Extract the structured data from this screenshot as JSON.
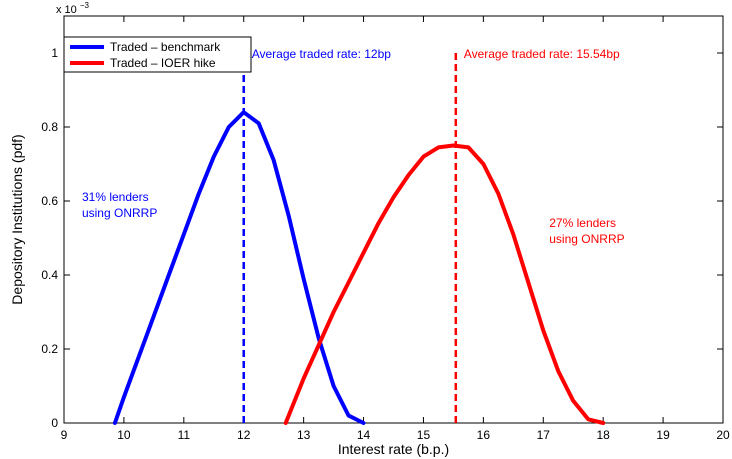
{
  "chart_data": {
    "type": "line",
    "xlabel": "Interest rate (b.p.)",
    "ylabel": "Depository Institutions (pdf)",
    "y_exponent_label": "x 10",
    "y_exponent_power": "−3",
    "xlim": [
      9,
      20
    ],
    "ylim": [
      0,
      1.1
    ],
    "xticks": [
      9,
      10,
      11,
      12,
      13,
      14,
      15,
      16,
      17,
      18,
      19,
      20
    ],
    "yticks": [
      0,
      0.2,
      0.4,
      0.6,
      0.8,
      1
    ],
    "ytick_labels": [
      "0",
      "0.2",
      "0.4",
      "0.6",
      "0.8",
      "1"
    ],
    "grid": false,
    "legend_position": "top-left",
    "series": [
      {
        "name": "Traded – benchmark",
        "color": "#0000ff",
        "x": [
          9.85,
          10.0,
          10.25,
          10.5,
          10.75,
          11.0,
          11.25,
          11.5,
          11.75,
          12.0,
          12.25,
          12.5,
          12.75,
          13.0,
          13.25,
          13.5,
          13.75,
          14.0
        ],
        "y": [
          0.0,
          0.07,
          0.18,
          0.29,
          0.4,
          0.51,
          0.62,
          0.72,
          0.8,
          0.84,
          0.81,
          0.71,
          0.56,
          0.39,
          0.23,
          0.1,
          0.02,
          0.0
        ]
      },
      {
        "name": "Traded – IOER hike",
        "color": "#ff0000",
        "x": [
          12.7,
          13.0,
          13.25,
          13.5,
          13.75,
          14.0,
          14.25,
          14.5,
          14.75,
          15.0,
          15.25,
          15.5,
          15.75,
          16.0,
          16.25,
          16.5,
          16.75,
          17.0,
          17.25,
          17.5,
          17.75,
          18.0
        ],
        "y": [
          0.0,
          0.12,
          0.21,
          0.3,
          0.38,
          0.46,
          0.54,
          0.61,
          0.67,
          0.72,
          0.745,
          0.75,
          0.745,
          0.7,
          0.62,
          0.51,
          0.38,
          0.25,
          0.14,
          0.06,
          0.01,
          0.0
        ]
      }
    ],
    "vlines": [
      {
        "x": 12.0,
        "y_top": 1.0,
        "color": "#0000ff",
        "label": "Average traded rate: 12bp"
      },
      {
        "x": 15.54,
        "y_top": 1.0,
        "color": "#ff0000",
        "label": "Average traded rate: 15.54bp"
      }
    ],
    "annotations": [
      {
        "lines": [
          "31% lenders",
          "using ONRRP"
        ],
        "x": 9.3,
        "y": 0.6,
        "color": "#0000ff"
      },
      {
        "lines": [
          "27% lenders",
          "using ONRRP"
        ],
        "x": 17.1,
        "y": 0.53,
        "color": "#ff0000"
      }
    ]
  }
}
